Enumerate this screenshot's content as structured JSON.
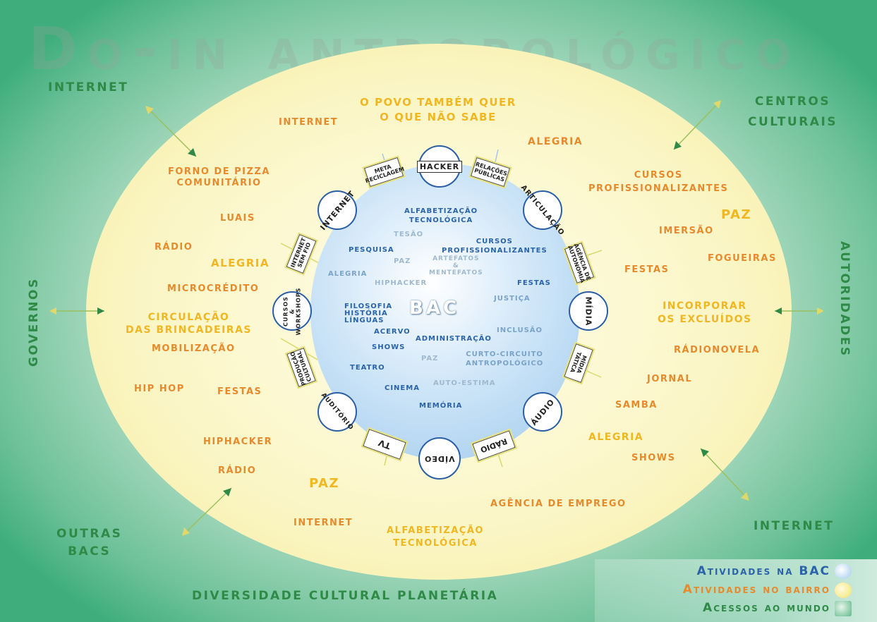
{
  "title": "Do-in antropológico",
  "world": {
    "internet_tl": "INTERNET",
    "centros": [
      "CENTROS",
      "CULTURAIS"
    ],
    "governos": "GOVERNOS",
    "autoridades": "AUTORIDADES",
    "outras": [
      "OUTRAS",
      "BACS"
    ],
    "internet_br": "INTERNET",
    "diversidade": "DIVERSIDADE CULTURAL PLANETÁRIA"
  },
  "bairro": {
    "povo": [
      "O POVO TAMBÉM QUER",
      "O QUE NÃO SABE"
    ],
    "internet1": "INTERNET",
    "alegria1": "ALEGRIA",
    "forno": [
      "FORNO DE PIZZA",
      "COMUNITÁRIO"
    ],
    "cursos": [
      "CURSOS",
      "PROFISSIONALIZANTES"
    ],
    "paz1": "PAZ",
    "luais": "LUAIS",
    "imersao": "IMERSÃO",
    "radio1": "RÁDIO",
    "fogueiras": "FOGUEIRAS",
    "alegria2": "ALEGRIA",
    "festas1": "FESTAS",
    "microcredito": "MICROCRÉDITO",
    "incorporar": [
      "INCORPORAR",
      "OS EXCLUÍDOS"
    ],
    "circulacao": [
      "CIRCULAÇÃO",
      "DAS BRINCADEIRAS"
    ],
    "mobilizacao": "MOBILIZAÇÃO",
    "radionovela": "RÁDIONOVELA",
    "jornal": "JORNAL",
    "hiphop": "HIP HOP",
    "festas2": "FESTAS",
    "samba": "SAMBA",
    "alegria3": "ALEGRIA",
    "hiphacker": "HIPHACKER",
    "shows": "SHOWS",
    "radio2": "RÁDIO",
    "paz2": "PAZ",
    "agencia": "AGÊNCIA DE EMPREGO",
    "internet2": "INTERNET",
    "alfabetizacao": [
      "ALFABETIZAÇÃO",
      "TECNOLÓGICA"
    ]
  },
  "bac": {
    "center": "BAC",
    "alfa": [
      "ALFABETIZAÇÃO",
      "TECNOLÓGICA"
    ],
    "tesao": "TESÃO",
    "cursos": [
      "CURSOS",
      "PROFISSIONALIZANTES"
    ],
    "pesquisa": "PESQUISA",
    "paz1": "PAZ",
    "artefatos": [
      "ARTEFATOS",
      "&",
      "MENTEFATOS"
    ],
    "alegria": "ALEGRIA",
    "hiphacker": "HIPHACKER",
    "festas": "FESTAS",
    "justica": "JUSTIÇA",
    "filosofia": [
      "FILOSOFIA",
      "HISTÓRIA",
      "LÍNGUAS"
    ],
    "acervo": "ACERVO",
    "inclusao": "INCLUSÃO",
    "administracao": "ADMINISTRAÇÃO",
    "shows": "SHOWS",
    "curto": [
      "CURTO-CIRCUITO",
      "ANTROPOLÓGICO"
    ],
    "paz2": "PAZ",
    "teatro": "TEATRO",
    "autoestima": "AUTO-ESTIMA",
    "cinema": "CINEMA",
    "memoria": "MEMÓRIA"
  },
  "nodes": {
    "hacker": "Hacker",
    "internet": "Internet",
    "articulacao": "Articulação",
    "cursos_workshops": [
      "Cursos",
      "&",
      "WorkShops"
    ],
    "midia": "Mídia",
    "auditorio": "Auditório",
    "audio": "Áudio",
    "video": "Vídeo"
  },
  "tags": {
    "meta": [
      "Meta",
      "Reciclagem"
    ],
    "relacoes": [
      "Relações",
      "Públicas"
    ],
    "internet_sem_fio": [
      "Internet",
      "sem fio"
    ],
    "agencia": [
      "Agência de",
      "Autonomia"
    ],
    "producao": [
      "Produção",
      "Cultural"
    ],
    "midia_tatica": [
      "Mídia",
      "Tática"
    ],
    "tv": "TV",
    "radio": "Rádio"
  },
  "legend": {
    "bac": "Atividades na BAC",
    "bairro": "Atividades no bairro",
    "mundo": "Acessos ao mundo"
  },
  "colors": {
    "bac": "#2a63a8",
    "bairro": "#e68a2e",
    "gold": "#f0b722",
    "world": "#2f8a47"
  }
}
